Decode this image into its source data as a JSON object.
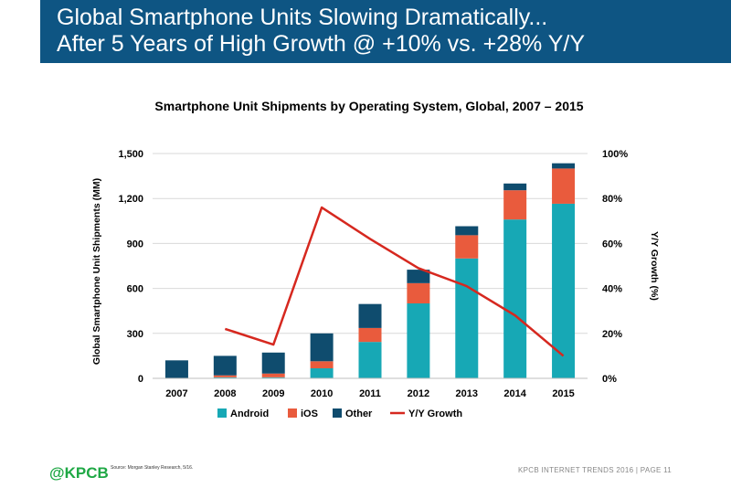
{
  "header": {
    "title_line1": "Global Smartphone Units Slowing Dramatically...",
    "title_line2": "After 5 Years of High Growth @ +10% vs. +28% Y/Y"
  },
  "chart_data": {
    "type": "bar",
    "stacked": true,
    "title": "Smartphone Unit Shipments by Operating System, Global, 2007 – 2015",
    "xlabel": "",
    "ylabel": "Global Smartphone Unit Shipments (MM)",
    "ylabel_right": "Y/Y Growth (%)",
    "categories": [
      "2007",
      "2008",
      "2009",
      "2010",
      "2011",
      "2012",
      "2013",
      "2014",
      "2015"
    ],
    "ylim": [
      0,
      1500
    ],
    "yticks": [
      "0",
      "300",
      "600",
      "900",
      "1,200",
      "1,500"
    ],
    "ylim_right": [
      0,
      100
    ],
    "yticks_right": [
      "0%",
      "20%",
      "40%",
      "60%",
      "80%",
      "100%"
    ],
    "series": [
      {
        "name": "Android",
        "color": "#17a8b5",
        "values": [
          0,
          7,
          7,
          67,
          243,
          500,
          800,
          1060,
          1165
        ]
      },
      {
        "name": "iOS",
        "color": "#e95b3d",
        "values": [
          0,
          13,
          25,
          47,
          93,
          135,
          155,
          195,
          235
        ]
      },
      {
        "name": "Other",
        "color": "#0f4c6e",
        "values": [
          120,
          130,
          140,
          186,
          160,
          90,
          60,
          45,
          35
        ]
      }
    ],
    "line_series": {
      "name": "Y/Y Growth",
      "color": "#d6281f",
      "axis": "right",
      "values": [
        null,
        22,
        15,
        76,
        62,
        49,
        41,
        28,
        10
      ]
    },
    "legend": "bottom",
    "grid": true
  },
  "footer": {
    "logo": "@KPCB",
    "source": "Source: Morgan Stanley Research, 5/16.",
    "right": "KPCB INTERNET TRENDS 2016  |  PAGE 11"
  }
}
